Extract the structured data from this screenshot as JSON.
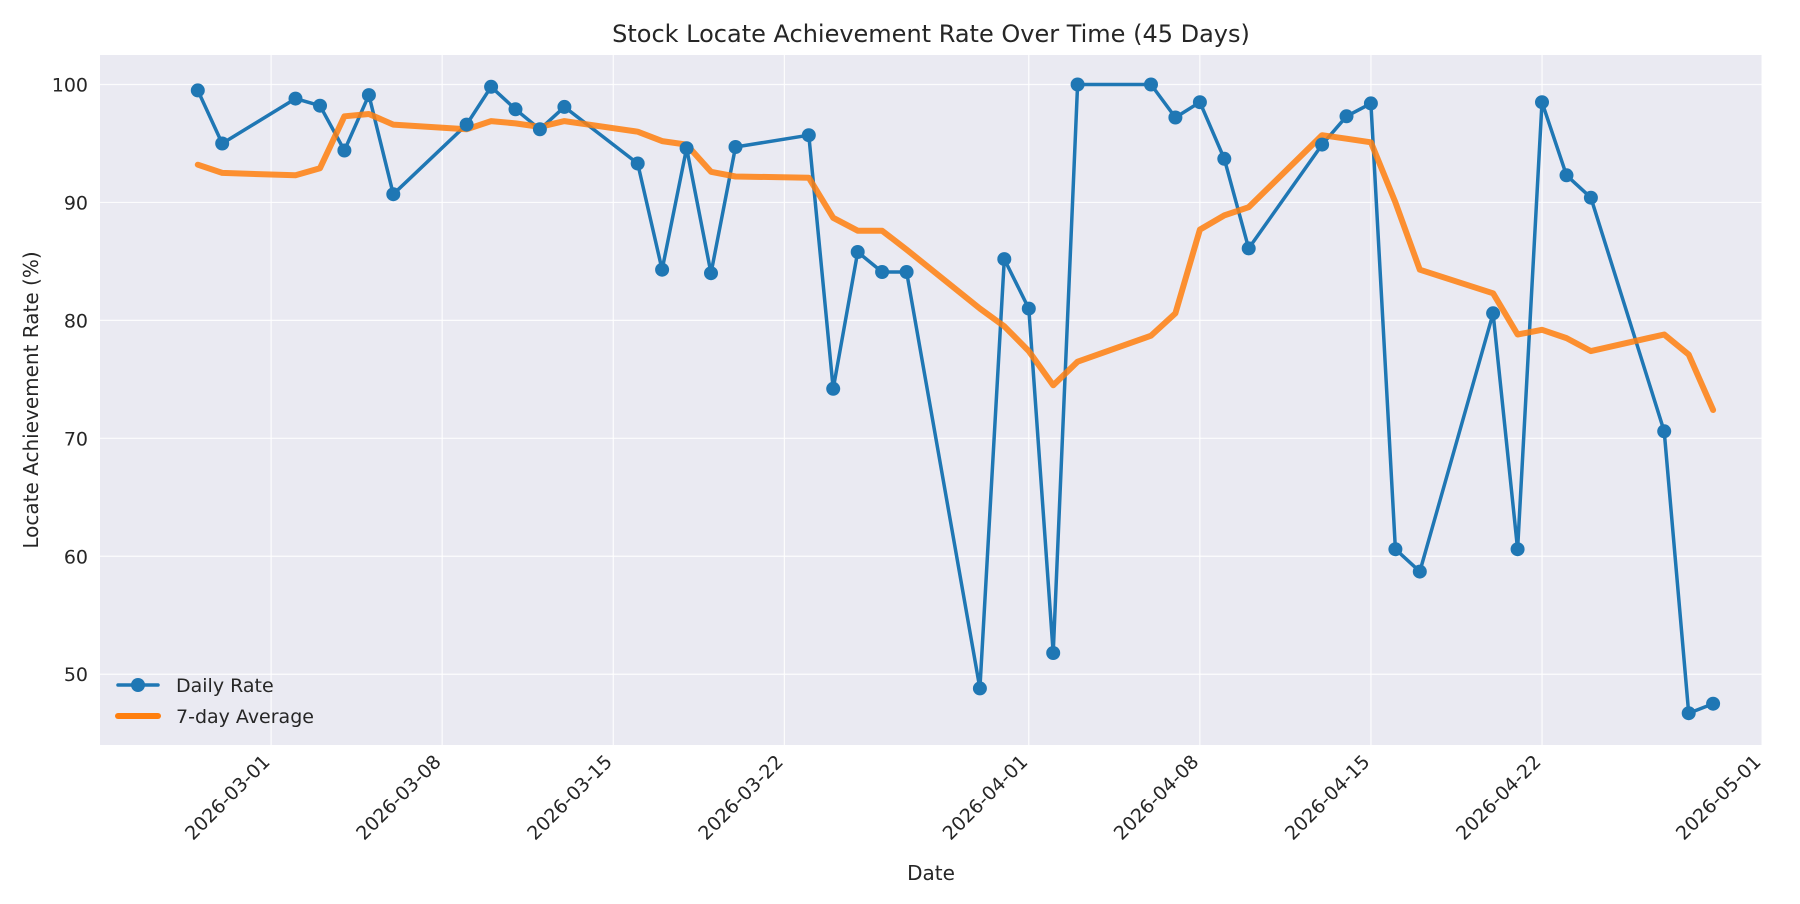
{
  "chart_data": {
    "type": "line",
    "title": "Stock Locate Achievement Rate Over Time (45 Days)",
    "xlabel": "Date",
    "ylabel": "Locate Achievement Rate (%)",
    "x_type": "date",
    "xlim": [
      "2026-02-22",
      "2026-05-01"
    ],
    "ylim": [
      44,
      102.5
    ],
    "x_ticks": [
      "2026-03-01",
      "2026-03-08",
      "2026-03-15",
      "2026-03-22",
      "2026-04-01",
      "2026-04-08",
      "2026-04-15",
      "2026-04-22",
      "2026-05-01"
    ],
    "y_ticks": [
      50,
      60,
      70,
      80,
      90,
      100
    ],
    "grid": true,
    "legend_position": "bottom-left",
    "series": [
      {
        "name": "Daily Rate",
        "color": "#1f77b4",
        "marker": "circle",
        "points": [
          [
            "2026-02-26",
            99.5
          ],
          [
            "2026-02-27",
            95.0
          ],
          [
            "2026-03-02",
            98.8
          ],
          [
            "2026-03-03",
            98.2
          ],
          [
            "2026-03-04",
            94.4
          ],
          [
            "2026-03-05",
            99.1
          ],
          [
            "2026-03-06",
            90.7
          ],
          [
            "2026-03-09",
            96.6
          ],
          [
            "2026-03-10",
            99.8
          ],
          [
            "2026-03-11",
            97.9
          ],
          [
            "2026-03-12",
            96.2
          ],
          [
            "2026-03-13",
            98.1
          ],
          [
            "2026-03-16",
            93.3
          ],
          [
            "2026-03-17",
            84.3
          ],
          [
            "2026-03-18",
            94.6
          ],
          [
            "2026-03-19",
            84.0
          ],
          [
            "2026-03-20",
            94.7
          ],
          [
            "2026-03-23",
            95.7
          ],
          [
            "2026-03-24",
            74.2
          ],
          [
            "2026-03-25",
            85.8
          ],
          [
            "2026-03-26",
            84.1
          ],
          [
            "2026-03-27",
            84.1
          ],
          [
            "2026-03-30",
            48.8
          ],
          [
            "2026-03-31",
            85.2
          ],
          [
            "2026-04-01",
            81.0
          ],
          [
            "2026-04-02",
            51.8
          ],
          [
            "2026-04-03",
            100.0
          ],
          [
            "2026-04-06",
            100.0
          ],
          [
            "2026-04-07",
            97.2
          ],
          [
            "2026-04-08",
            98.5
          ],
          [
            "2026-04-09",
            93.7
          ],
          [
            "2026-04-10",
            86.1
          ],
          [
            "2026-04-13",
            94.9
          ],
          [
            "2026-04-14",
            97.3
          ],
          [
            "2026-04-15",
            98.4
          ],
          [
            "2026-04-16",
            60.6
          ],
          [
            "2026-04-17",
            58.7
          ],
          [
            "2026-04-20",
            80.6
          ],
          [
            "2026-04-21",
            60.6
          ],
          [
            "2026-04-22",
            98.5
          ],
          [
            "2026-04-23",
            92.3
          ],
          [
            "2026-04-24",
            90.4
          ],
          [
            "2026-04-27",
            70.6
          ],
          [
            "2026-04-28",
            46.7
          ],
          [
            "2026-04-29",
            47.5
          ]
        ]
      },
      {
        "name": "7-day Average",
        "color": "#ff7f0e",
        "marker": "none",
        "points": [
          [
            "2026-02-26",
            93.2
          ],
          [
            "2026-02-27",
            92.5
          ],
          [
            "2026-03-02",
            92.3
          ],
          [
            "2026-03-03",
            92.9
          ],
          [
            "2026-03-04",
            97.3
          ],
          [
            "2026-03-05",
            97.5
          ],
          [
            "2026-03-06",
            96.6
          ],
          [
            "2026-03-09",
            96.2
          ],
          [
            "2026-03-10",
            96.9
          ],
          [
            "2026-03-11",
            96.7
          ],
          [
            "2026-03-12",
            96.4
          ],
          [
            "2026-03-13",
            96.9
          ],
          [
            "2026-03-16",
            96.0
          ],
          [
            "2026-03-17",
            95.2
          ],
          [
            "2026-03-18",
            94.9
          ],
          [
            "2026-03-19",
            92.6
          ],
          [
            "2026-03-20",
            92.2
          ],
          [
            "2026-03-23",
            92.1
          ],
          [
            "2026-03-24",
            88.7
          ],
          [
            "2026-03-25",
            87.6
          ],
          [
            "2026-03-26",
            87.6
          ],
          [
            "2026-03-27",
            86.0
          ],
          [
            "2026-03-30",
            81.0
          ],
          [
            "2026-03-31",
            79.5
          ],
          [
            "2026-04-01",
            77.4
          ],
          [
            "2026-04-02",
            74.5
          ],
          [
            "2026-04-03",
            76.5
          ],
          [
            "2026-04-06",
            78.7
          ],
          [
            "2026-04-07",
            80.6
          ],
          [
            "2026-04-08",
            87.7
          ],
          [
            "2026-04-09",
            88.9
          ],
          [
            "2026-04-10",
            89.6
          ],
          [
            "2026-04-13",
            95.7
          ],
          [
            "2026-04-14",
            95.4
          ],
          [
            "2026-04-15",
            95.1
          ],
          [
            "2026-04-16",
            90.0
          ],
          [
            "2026-04-17",
            84.3
          ],
          [
            "2026-04-20",
            82.3
          ],
          [
            "2026-04-21",
            78.8
          ],
          [
            "2026-04-22",
            79.2
          ],
          [
            "2026-04-23",
            78.5
          ],
          [
            "2026-04-24",
            77.4
          ],
          [
            "2026-04-27",
            78.8
          ],
          [
            "2026-04-28",
            77.1
          ],
          [
            "2026-04-29",
            72.4
          ]
        ]
      }
    ]
  }
}
